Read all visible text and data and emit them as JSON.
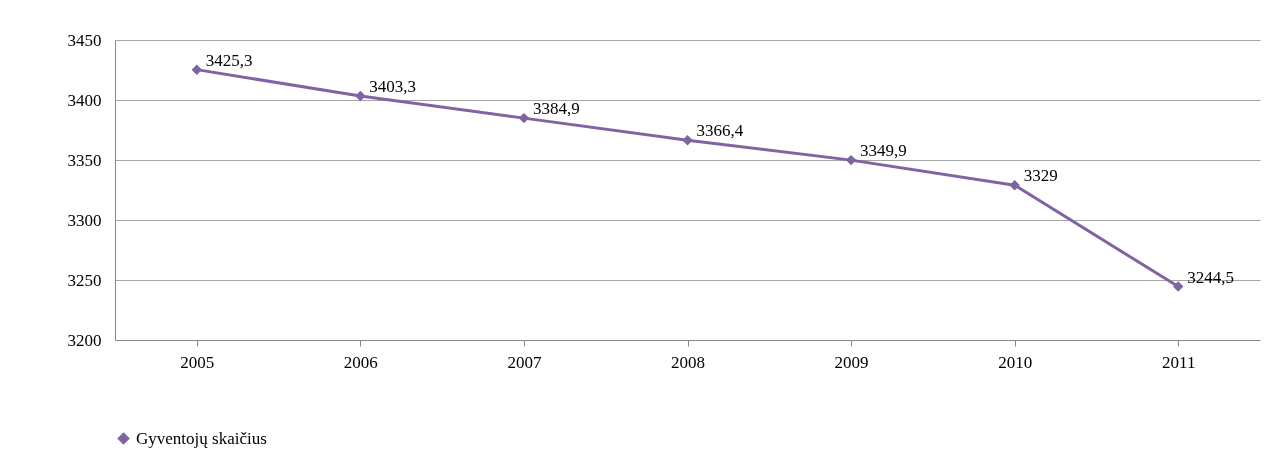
{
  "chart_data": {
    "type": "line",
    "categories": [
      "2005",
      "2006",
      "2007",
      "2008",
      "2009",
      "2010",
      "2011"
    ],
    "series": [
      {
        "name": "Gyventojų skaičius",
        "color": "#8064a2",
        "values": [
          3425.3,
          3403.3,
          3384.9,
          3366.4,
          3349.9,
          3329,
          3244.5
        ],
        "value_labels": [
          "3425,3",
          "3403,3",
          "3384,9",
          "3366,4",
          "3349,9",
          "3329",
          "3244,5"
        ]
      }
    ],
    "ylim": [
      3200,
      3450
    ],
    "yticks": [
      3200,
      3250,
      3300,
      3350,
      3400,
      3450
    ],
    "grid": "y",
    "legend": "bottom",
    "marker": "diamond",
    "line_style": "solid"
  }
}
